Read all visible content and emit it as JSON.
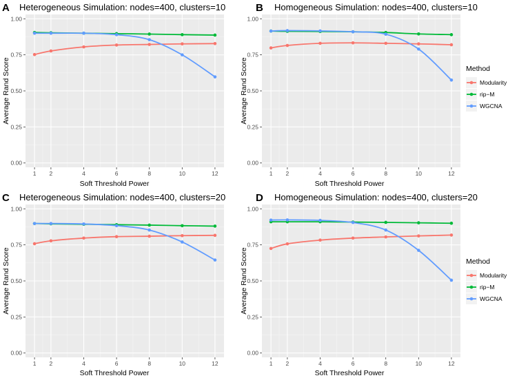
{
  "legend": {
    "title": "Method",
    "items": [
      {
        "label": "Modularity",
        "color": "#F8766D"
      },
      {
        "label": "rip−M",
        "color": "#00BA38"
      },
      {
        "label": "WGCNA",
        "color": "#619CFF"
      }
    ]
  },
  "chart_data": [
    {
      "type": "line",
      "panel": "A",
      "title": "Heterogeneous Simulation: nodes=400, clusters=10",
      "xlabel": "Soft Threshold Power",
      "ylabel": "Average Rand Score",
      "x": [
        1,
        2,
        4,
        6,
        8,
        10,
        12
      ],
      "x_ticks": [
        "1",
        "2",
        "4",
        "6",
        "8",
        "10",
        "12"
      ],
      "y_ticks": [
        "0.00",
        "0.25",
        "0.50",
        "0.75",
        "1.00"
      ],
      "ylim": [
        -0.03,
        1.03
      ],
      "series": [
        {
          "name": "Modularity",
          "values": [
            0.752,
            0.777,
            0.805,
            0.818,
            0.822,
            0.826,
            0.828
          ]
        },
        {
          "name": "rip−M",
          "values": [
            0.905,
            0.903,
            0.9,
            0.897,
            0.894,
            0.89,
            0.887
          ]
        },
        {
          "name": "WGCNA",
          "values": [
            0.9,
            0.9,
            0.9,
            0.89,
            0.855,
            0.75,
            0.597
          ]
        }
      ]
    },
    {
      "type": "line",
      "panel": "B",
      "title": "Homogeneous Simulation: nodes=400, clusters=10",
      "xlabel": "Soft Threshold Power",
      "ylabel": "Average Rand Score",
      "x": [
        1,
        2,
        4,
        6,
        8,
        10,
        12
      ],
      "x_ticks": [
        "1",
        "2",
        "4",
        "6",
        "8",
        "10",
        "12"
      ],
      "y_ticks": [
        "0.00",
        "0.25",
        "0.50",
        "0.75",
        "1.00"
      ],
      "ylim": [
        -0.03,
        1.03
      ],
      "series": [
        {
          "name": "Modularity",
          "values": [
            0.798,
            0.815,
            0.83,
            0.833,
            0.83,
            0.826,
            0.82
          ]
        },
        {
          "name": "rip−M",
          "values": [
            0.915,
            0.913,
            0.912,
            0.91,
            0.905,
            0.895,
            0.89
          ]
        },
        {
          "name": "WGCNA",
          "values": [
            0.915,
            0.918,
            0.916,
            0.91,
            0.893,
            0.79,
            0.575
          ]
        }
      ]
    },
    {
      "type": "line",
      "panel": "C",
      "title": "Heterogeneous Simulation: nodes=400, clusters=20",
      "xlabel": "Soft Threshold Power",
      "ylabel": "Average Rand Score",
      "x": [
        1,
        2,
        4,
        6,
        8,
        10,
        12
      ],
      "x_ticks": [
        "1",
        "2",
        "4",
        "6",
        "8",
        "10",
        "12"
      ],
      "y_ticks": [
        "0.00",
        "0.25",
        "0.50",
        "0.75",
        "1.00"
      ],
      "ylim": [
        -0.03,
        1.03
      ],
      "series": [
        {
          "name": "Modularity",
          "values": [
            0.758,
            0.778,
            0.797,
            0.807,
            0.81,
            0.814,
            0.816
          ]
        },
        {
          "name": "rip−M",
          "values": [
            0.898,
            0.896,
            0.893,
            0.89,
            0.887,
            0.883,
            0.88
          ]
        },
        {
          "name": "WGCNA",
          "values": [
            0.898,
            0.898,
            0.895,
            0.883,
            0.853,
            0.77,
            0.645
          ]
        }
      ]
    },
    {
      "type": "line",
      "panel": "D",
      "title": "Homogeneous Simulation: nodes=400, clusters=20",
      "xlabel": "Soft Threshold Power",
      "ylabel": "Average Rand Score",
      "x": [
        1,
        2,
        4,
        6,
        8,
        10,
        12
      ],
      "x_ticks": [
        "1",
        "2",
        "4",
        "6",
        "8",
        "10",
        "12"
      ],
      "y_ticks": [
        "0.00",
        "0.25",
        "0.50",
        "0.75",
        "1.00"
      ],
      "ylim": [
        -0.03,
        1.03
      ],
      "series": [
        {
          "name": "Modularity",
          "values": [
            0.725,
            0.757,
            0.783,
            0.797,
            0.805,
            0.812,
            0.818
          ]
        },
        {
          "name": "rip−M",
          "values": [
            0.91,
            0.91,
            0.91,
            0.908,
            0.906,
            0.903,
            0.9
          ]
        },
        {
          "name": "WGCNA",
          "values": [
            0.922,
            0.923,
            0.92,
            0.905,
            0.853,
            0.712,
            0.505
          ]
        }
      ]
    }
  ]
}
